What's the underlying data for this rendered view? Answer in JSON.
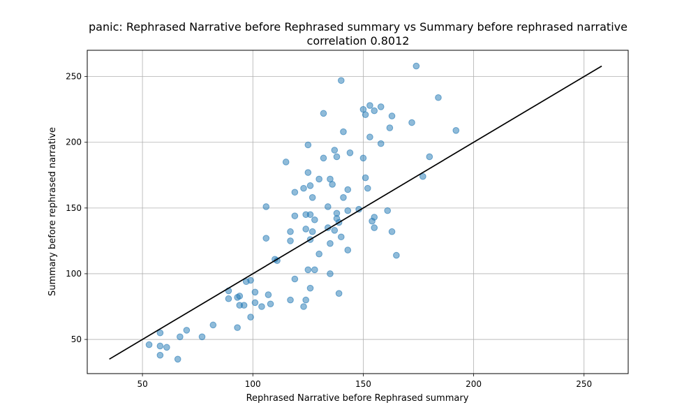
{
  "chart_data": {
    "type": "scatter",
    "title": "panic:  Rephrased Narrative before Rephrased summary vs Summary before rephrased narrative",
    "subtitle": "correlation 0.8012",
    "xlabel": "Rephrased Narrative before Rephrased summary",
    "ylabel": "Summary before rephrased narrative",
    "xlim": [
      25,
      270
    ],
    "ylim": [
      24,
      270
    ],
    "xticks": [
      50,
      100,
      150,
      200,
      250
    ],
    "yticks": [
      50,
      100,
      150,
      200,
      250
    ],
    "grid": true,
    "point_color": "#1f77b4",
    "line_color": "#000000",
    "reference_line": {
      "x": [
        35,
        258
      ],
      "y": [
        35,
        258
      ]
    },
    "points": [
      {
        "x": 53,
        "y": 46
      },
      {
        "x": 58,
        "y": 45
      },
      {
        "x": 58,
        "y": 38
      },
      {
        "x": 58,
        "y": 55
      },
      {
        "x": 61,
        "y": 44
      },
      {
        "x": 66,
        "y": 35
      },
      {
        "x": 67,
        "y": 52
      },
      {
        "x": 70,
        "y": 57
      },
      {
        "x": 77,
        "y": 52
      },
      {
        "x": 82,
        "y": 61
      },
      {
        "x": 89,
        "y": 87
      },
      {
        "x": 89,
        "y": 81
      },
      {
        "x": 93,
        "y": 82
      },
      {
        "x": 93,
        "y": 59
      },
      {
        "x": 94,
        "y": 83
      },
      {
        "x": 94,
        "y": 76
      },
      {
        "x": 96,
        "y": 76
      },
      {
        "x": 97,
        "y": 94
      },
      {
        "x": 99,
        "y": 95
      },
      {
        "x": 99,
        "y": 67
      },
      {
        "x": 101,
        "y": 86
      },
      {
        "x": 101,
        "y": 78
      },
      {
        "x": 104,
        "y": 75
      },
      {
        "x": 106,
        "y": 151
      },
      {
        "x": 106,
        "y": 127
      },
      {
        "x": 107,
        "y": 84
      },
      {
        "x": 108,
        "y": 77
      },
      {
        "x": 110,
        "y": 111
      },
      {
        "x": 111,
        "y": 110
      },
      {
        "x": 115,
        "y": 185
      },
      {
        "x": 117,
        "y": 132
      },
      {
        "x": 117,
        "y": 125
      },
      {
        "x": 117,
        "y": 80
      },
      {
        "x": 119,
        "y": 162
      },
      {
        "x": 119,
        "y": 144
      },
      {
        "x": 119,
        "y": 96
      },
      {
        "x": 123,
        "y": 75
      },
      {
        "x": 123,
        "y": 165
      },
      {
        "x": 124,
        "y": 145
      },
      {
        "x": 124,
        "y": 134
      },
      {
        "x": 124,
        "y": 80
      },
      {
        "x": 125,
        "y": 198
      },
      {
        "x": 125,
        "y": 177
      },
      {
        "x": 125,
        "y": 103
      },
      {
        "x": 126,
        "y": 167
      },
      {
        "x": 126,
        "y": 145
      },
      {
        "x": 126,
        "y": 126
      },
      {
        "x": 126,
        "y": 89
      },
      {
        "x": 127,
        "y": 158
      },
      {
        "x": 127,
        "y": 132
      },
      {
        "x": 128,
        "y": 141
      },
      {
        "x": 128,
        "y": 103
      },
      {
        "x": 130,
        "y": 172
      },
      {
        "x": 130,
        "y": 115
      },
      {
        "x": 132,
        "y": 222
      },
      {
        "x": 132,
        "y": 188
      },
      {
        "x": 134,
        "y": 151
      },
      {
        "x": 134,
        "y": 135
      },
      {
        "x": 135,
        "y": 172
      },
      {
        "x": 135,
        "y": 123
      },
      {
        "x": 135,
        "y": 100
      },
      {
        "x": 136,
        "y": 168
      },
      {
        "x": 137,
        "y": 194
      },
      {
        "x": 137,
        "y": 133
      },
      {
        "x": 138,
        "y": 189
      },
      {
        "x": 138,
        "y": 146
      },
      {
        "x": 138,
        "y": 142
      },
      {
        "x": 139,
        "y": 139
      },
      {
        "x": 139,
        "y": 85
      },
      {
        "x": 140,
        "y": 247
      },
      {
        "x": 140,
        "y": 128
      },
      {
        "x": 141,
        "y": 208
      },
      {
        "x": 141,
        "y": 158
      },
      {
        "x": 143,
        "y": 164
      },
      {
        "x": 143,
        "y": 148
      },
      {
        "x": 143,
        "y": 118
      },
      {
        "x": 144,
        "y": 192
      },
      {
        "x": 148,
        "y": 149
      },
      {
        "x": 150,
        "y": 225
      },
      {
        "x": 150,
        "y": 188
      },
      {
        "x": 151,
        "y": 221
      },
      {
        "x": 151,
        "y": 173
      },
      {
        "x": 152,
        "y": 165
      },
      {
        "x": 153,
        "y": 228
      },
      {
        "x": 153,
        "y": 204
      },
      {
        "x": 154,
        "y": 140
      },
      {
        "x": 155,
        "y": 224
      },
      {
        "x": 155,
        "y": 143
      },
      {
        "x": 155,
        "y": 135
      },
      {
        "x": 158,
        "y": 227
      },
      {
        "x": 158,
        "y": 199
      },
      {
        "x": 161,
        "y": 148
      },
      {
        "x": 162,
        "y": 211
      },
      {
        "x": 163,
        "y": 220
      },
      {
        "x": 163,
        "y": 132
      },
      {
        "x": 165,
        "y": 114
      },
      {
        "x": 172,
        "y": 215
      },
      {
        "x": 174,
        "y": 258
      },
      {
        "x": 177,
        "y": 174
      },
      {
        "x": 180,
        "y": 189
      },
      {
        "x": 184,
        "y": 234
      },
      {
        "x": 192,
        "y": 209
      }
    ]
  }
}
